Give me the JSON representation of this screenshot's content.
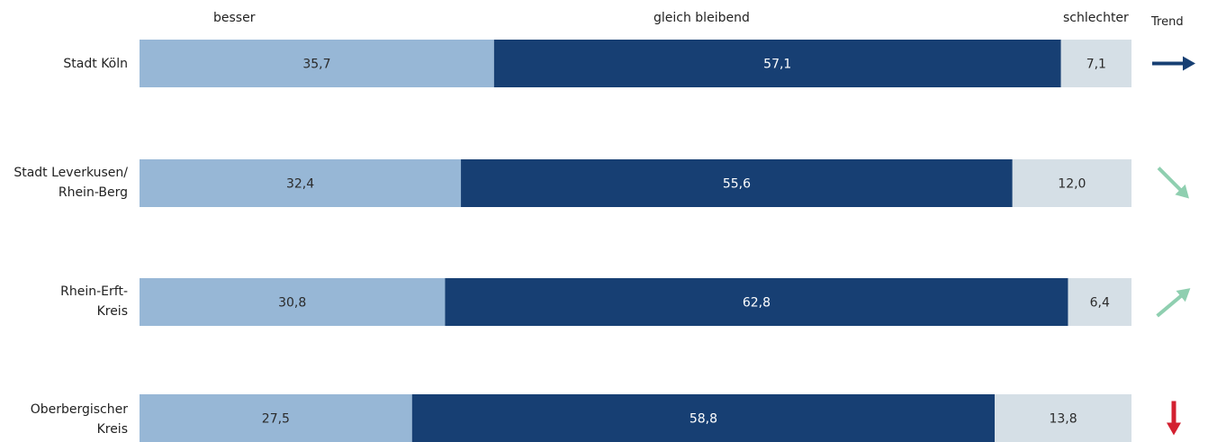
{
  "chart_data": {
    "type": "bar",
    "orientation": "horizontal",
    "stacked": true,
    "normalized_percent": true,
    "legend": {
      "besser": "besser",
      "gleich": "gleich bleibend",
      "schlechter": "schlechter",
      "trend": "Trend"
    },
    "colors": {
      "besser": "#97b7d6",
      "gleich": "#173f73",
      "schlechter": "#d5dfe6",
      "trend_stable": "#173f73",
      "trend_up": "#8fcfb0",
      "trend_down_green": "#8fcfb0",
      "trend_down_red": "#d32030"
    },
    "categories": [
      {
        "line1": "Stadt Köln",
        "line2": "",
        "trend": "right",
        "trend_color": "#173f73"
      },
      {
        "line1": "Stadt Leverkusen/",
        "line2": "Rhein-Berg",
        "trend": "down-right",
        "trend_color": "#8fcfb0"
      },
      {
        "line1": "Rhein-Erft-",
        "line2": "Kreis",
        "trend": "up-right",
        "trend_color": "#8fcfb0"
      },
      {
        "line1": "Oberbergischer",
        "line2": "Kreis",
        "trend": "down",
        "trend_color": "#d32030"
      }
    ],
    "series": [
      {
        "name": "besser",
        "values": [
          35.7,
          32.4,
          30.8,
          27.5
        ],
        "labels": [
          "35,7",
          "32,4",
          "30,8",
          "27,5"
        ]
      },
      {
        "name": "gleich bleibend",
        "values": [
          57.1,
          55.6,
          62.8,
          58.8
        ],
        "labels": [
          "57,1",
          "55,6",
          "62,8",
          "58,8"
        ]
      },
      {
        "name": "schlechter",
        "values": [
          7.1,
          12.0,
          6.4,
          13.8
        ],
        "labels": [
          "7,1",
          "12,0",
          "6,4",
          "13,8"
        ]
      }
    ],
    "xlim": [
      0,
      100
    ]
  }
}
